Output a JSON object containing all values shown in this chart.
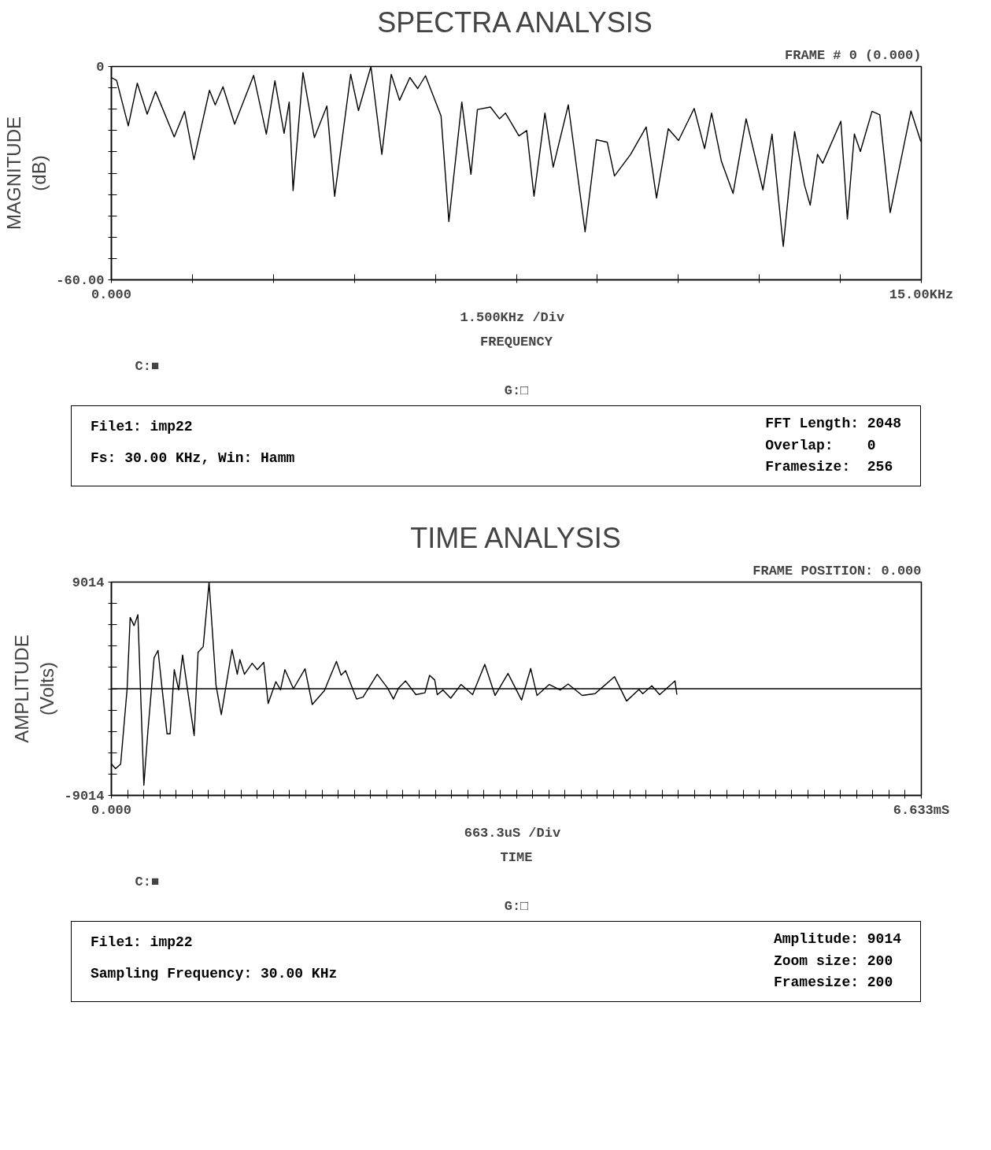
{
  "chart_data": [
    {
      "type": "line",
      "title": "SPECTRA ANALYSIS",
      "subtitle": "FRAME # 0 (0.000)",
      "xlabel": "FREQUENCY",
      "ylabel": "MAGNITUDE (dB)",
      "annotations": [
        "1.500KHz  /Div",
        "C:■",
        "G:□",
        "File1: imp22",
        "Fs: 30.00 KHz, Win: Hamm",
        "FFT Length: 2048",
        "Overlap:    0",
        "Framesize:  256"
      ],
      "xlim": [
        0,
        15
      ],
      "ylim": [
        -60,
        0
      ],
      "xticks": [
        {
          "value": 0,
          "label": "0.000"
        },
        {
          "value": 1.5,
          "label": null
        },
        {
          "value": 3,
          "label": null
        },
        {
          "value": 4.5,
          "label": null
        },
        {
          "value": 6,
          "label": null
        },
        {
          "value": 7.5,
          "label": null
        },
        {
          "value": 9,
          "label": null
        },
        {
          "value": 10.5,
          "label": null
        },
        {
          "value": 12,
          "label": null
        },
        {
          "value": 13.5,
          "label": null
        },
        {
          "value": 15,
          "label": "15.00KHz"
        }
      ],
      "yticks": [
        0,
        {
          "value": -6,
          "label": null
        },
        {
          "value": -12,
          "label": null
        },
        {
          "value": -18,
          "label": null
        },
        {
          "value": -24,
          "label": null
        },
        {
          "value": -30,
          "label": null
        },
        {
          "value": -36,
          "label": null
        },
        {
          "value": -42,
          "label": null
        },
        {
          "value": -48,
          "label": null
        },
        {
          "value": -54,
          "label": null
        },
        {
          "value": -60,
          "label": "-60.00"
        }
      ],
      "x": [
        0.0,
        0.097,
        0.313,
        0.48,
        0.663,
        0.818,
        1.164,
        1.356,
        1.529,
        1.817,
        1.923,
        2.067,
        2.283,
        2.635,
        2.87,
        3.029,
        3.198,
        3.293,
        3.365,
        3.548,
        3.76,
        3.991,
        4.135,
        4.432,
        4.576,
        4.807,
        5.009,
        5.183,
        5.337,
        5.528,
        5.673,
        5.817,
        6.105,
        6.25,
        6.49,
        6.659,
        6.779,
        7.02,
        7.187,
        7.298,
        7.548,
        7.692,
        7.827,
        8.029,
        8.182,
        8.462,
        8.773,
        8.981,
        9.183,
        9.317,
        9.616,
        9.904,
        10.096,
        10.313,
        10.504,
        10.793,
        10.986,
        11.116,
        11.298,
        11.514,
        11.755,
        12.067,
        12.235,
        12.443,
        12.653,
        12.837,
        12.942,
        13.077,
        13.173,
        13.51,
        13.63,
        13.76,
        13.871,
        14.087,
        14.231,
        14.423,
        14.808,
        14.99
      ],
      "series": [
        {
          "color": "#000000",
          "values": [
            -3.1,
            -3.9,
            -16.7,
            -4.7,
            -13.4,
            -7.0,
            -19.8,
            -12.6,
            -26.2,
            -6.7,
            -10.8,
            -5.7,
            -16.2,
            -2.5,
            -19.0,
            -4.0,
            -18.8,
            -10.0,
            -34.9,
            -1.7,
            -20.0,
            -11.1,
            -36.5,
            -2.2,
            -12.4,
            0.0,
            -24.7,
            -2.2,
            -9.5,
            -3.1,
            -6.2,
            -2.6,
            -13.9,
            -43.6,
            -10.0,
            -30.3,
            -12.1,
            -11.4,
            -14.7,
            -13.1,
            -19.5,
            -18.0,
            -36.5,
            -13.1,
            -28.3,
            -10.8,
            -46.5,
            -20.6,
            -21.3,
            -30.8,
            -24.7,
            -17.0,
            -37.0,
            -17.5,
            -20.8,
            -11.8,
            -23.1,
            -13.1,
            -26.7,
            -35.7,
            -14.7,
            -34.7,
            -19.0,
            -50.6,
            -18.3,
            -33.4,
            -39.0,
            -24.7,
            -27.2,
            -15.4,
            -42.9,
            -19.0,
            -23.9,
            -12.6,
            -13.6,
            -41.1,
            -12.5,
            -21.1
          ]
        }
      ]
    },
    {
      "type": "line",
      "title": "TIME ANALYSIS",
      "subtitle": "FRAME POSITION: 0.000",
      "xlabel": "TIME",
      "ylabel": "AMPLITUDE (Volts)",
      "annotations": [
        "663.3uS  /Div",
        "C:■",
        "G:□",
        "File1: imp22",
        "Sampling Frequency: 30.00 KHz",
        "Amplitude: 9014",
        "Zoom size: 200",
        "Framesize: 200"
      ],
      "xlim": [
        0,
        6.633
      ],
      "ylim": [
        -9014,
        9014
      ],
      "xticks": [
        {
          "value": 0,
          "label": "0.000"
        },
        {
          "value": 0.13266,
          "label": null
        },
        {
          "value": 0.26532,
          "label": null
        },
        {
          "value": 0.39798,
          "label": null
        },
        {
          "value": 0.53064,
          "label": null
        },
        {
          "value": 0.6633,
          "label": null
        },
        {
          "value": 0.79596,
          "label": null
        },
        {
          "value": 0.92862,
          "label": null
        },
        {
          "value": 1.06128,
          "label": null
        },
        {
          "value": 1.19394,
          "label": null
        },
        {
          "value": 1.3266,
          "label": null
        },
        {
          "value": 1.45926,
          "label": null
        },
        {
          "value": 1.59192,
          "label": null
        },
        {
          "value": 1.72458,
          "label": null
        },
        {
          "value": 1.85724,
          "label": null
        },
        {
          "value": 1.9899,
          "label": null
        },
        {
          "value": 2.12256,
          "label": null
        },
        {
          "value": 2.25522,
          "label": null
        },
        {
          "value": 2.38788,
          "label": null
        },
        {
          "value": 2.52054,
          "label": null
        },
        {
          "value": 2.6532,
          "label": null
        },
        {
          "value": 2.78586,
          "label": null
        },
        {
          "value": 2.91852,
          "label": null
        },
        {
          "value": 3.05118,
          "label": null
        },
        {
          "value": 3.18384,
          "label": null
        },
        {
          "value": 3.3165,
          "label": null
        },
        {
          "value": 3.44916,
          "label": null
        },
        {
          "value": 3.58182,
          "label": null
        },
        {
          "value": 3.71448,
          "label": null
        },
        {
          "value": 3.84714,
          "label": null
        },
        {
          "value": 3.9798,
          "label": null
        },
        {
          "value": 4.11246,
          "label": null
        },
        {
          "value": 4.24512,
          "label": null
        },
        {
          "value": 4.37778,
          "label": null
        },
        {
          "value": 4.51044,
          "label": null
        },
        {
          "value": 4.6431,
          "label": null
        },
        {
          "value": 4.77576,
          "label": null
        },
        {
          "value": 4.90842,
          "label": null
        },
        {
          "value": 5.04108,
          "label": null
        },
        {
          "value": 5.17374,
          "label": null
        },
        {
          "value": 5.3064,
          "label": null
        },
        {
          "value": 5.43906,
          "label": null
        },
        {
          "value": 5.57172,
          "label": null
        },
        {
          "value": 5.70438,
          "label": null
        },
        {
          "value": 5.83704,
          "label": null
        },
        {
          "value": 5.9697,
          "label": null
        },
        {
          "value": 6.10236,
          "label": null
        },
        {
          "value": 6.23502,
          "label": null
        },
        {
          "value": 6.36768,
          "label": null
        },
        {
          "value": 6.50034,
          "label": null
        },
        {
          "value": 6.633,
          "label": "6.633mS"
        }
      ],
      "yticks": [
        9014,
        {
          "value": 7211.2,
          "label": null
        },
        {
          "value": 5408.4,
          "label": null
        },
        {
          "value": 3605.6,
          "label": null
        },
        {
          "value": 1802.8,
          "label": null
        },
        {
          "value": 0,
          "label": null
        },
        {
          "value": -1802.8,
          "label": null
        },
        {
          "value": -3605.6,
          "label": null
        },
        {
          "value": -5408.4,
          "label": null
        },
        {
          "value": -7211.2,
          "label": null
        },
        -9014
      ],
      "ref_lines": [
        {
          "axis": "y",
          "value": 0,
          "label": null,
          "color": "#000000"
        }
      ],
      "x": [
        0.002,
        0.034,
        0.076,
        0.129,
        0.154,
        0.186,
        0.217,
        0.266,
        0.298,
        0.35,
        0.382,
        0.414,
        0.456,
        0.481,
        0.515,
        0.551,
        0.583,
        0.678,
        0.71,
        0.752,
        0.8,
        0.857,
        0.9,
        0.988,
        1.031,
        1.052,
        1.09,
        1.153,
        1.195,
        1.248,
        1.284,
        1.347,
        1.385,
        1.421,
        1.491,
        1.586,
        1.645,
        1.744,
        1.843,
        1.881,
        1.918,
        2.008,
        2.061,
        2.177,
        2.262,
        2.31,
        2.352,
        2.409,
        2.494,
        2.568,
        2.606,
        2.648,
        2.669,
        2.716,
        2.779,
        2.863,
        2.958,
        3.058,
        3.142,
        3.248,
        3.359,
        3.434,
        3.486,
        3.586,
        3.676,
        3.74,
        3.856,
        3.961,
        4.12,
        4.219,
        4.32,
        4.352,
        4.426,
        4.49,
        4.616,
        4.631
      ],
      "series": [
        {
          "color": "#000000",
          "values": [
            -6370,
            -6750,
            -6370,
            0,
            6030,
            5330,
            6260,
            -8150,
            -3730,
            2620,
            3240,
            140,
            -3810,
            -3810,
            1610,
            -90,
            2850,
            -3960,
            3080,
            3550,
            9014,
            290,
            -2180,
            3310,
            1220,
            2460,
            1220,
            2150,
            1610,
            2230,
            -1250,
            600,
            -90,
            1610,
            0,
            1690,
            -1330,
            -170,
            2310,
            1150,
            1530,
            -870,
            -710,
            1220,
            60,
            -870,
            60,
            660,
            -500,
            -340,
            1130,
            740,
            -500,
            -110,
            -800,
            360,
            -500,
            2060,
            -570,
            1290,
            -960,
            1710,
            -570,
            360,
            -110,
            400,
            -570,
            -420,
            1020,
            -1040,
            -60,
            -420,
            250,
            -500,
            660,
            -500
          ]
        }
      ]
    }
  ]
}
